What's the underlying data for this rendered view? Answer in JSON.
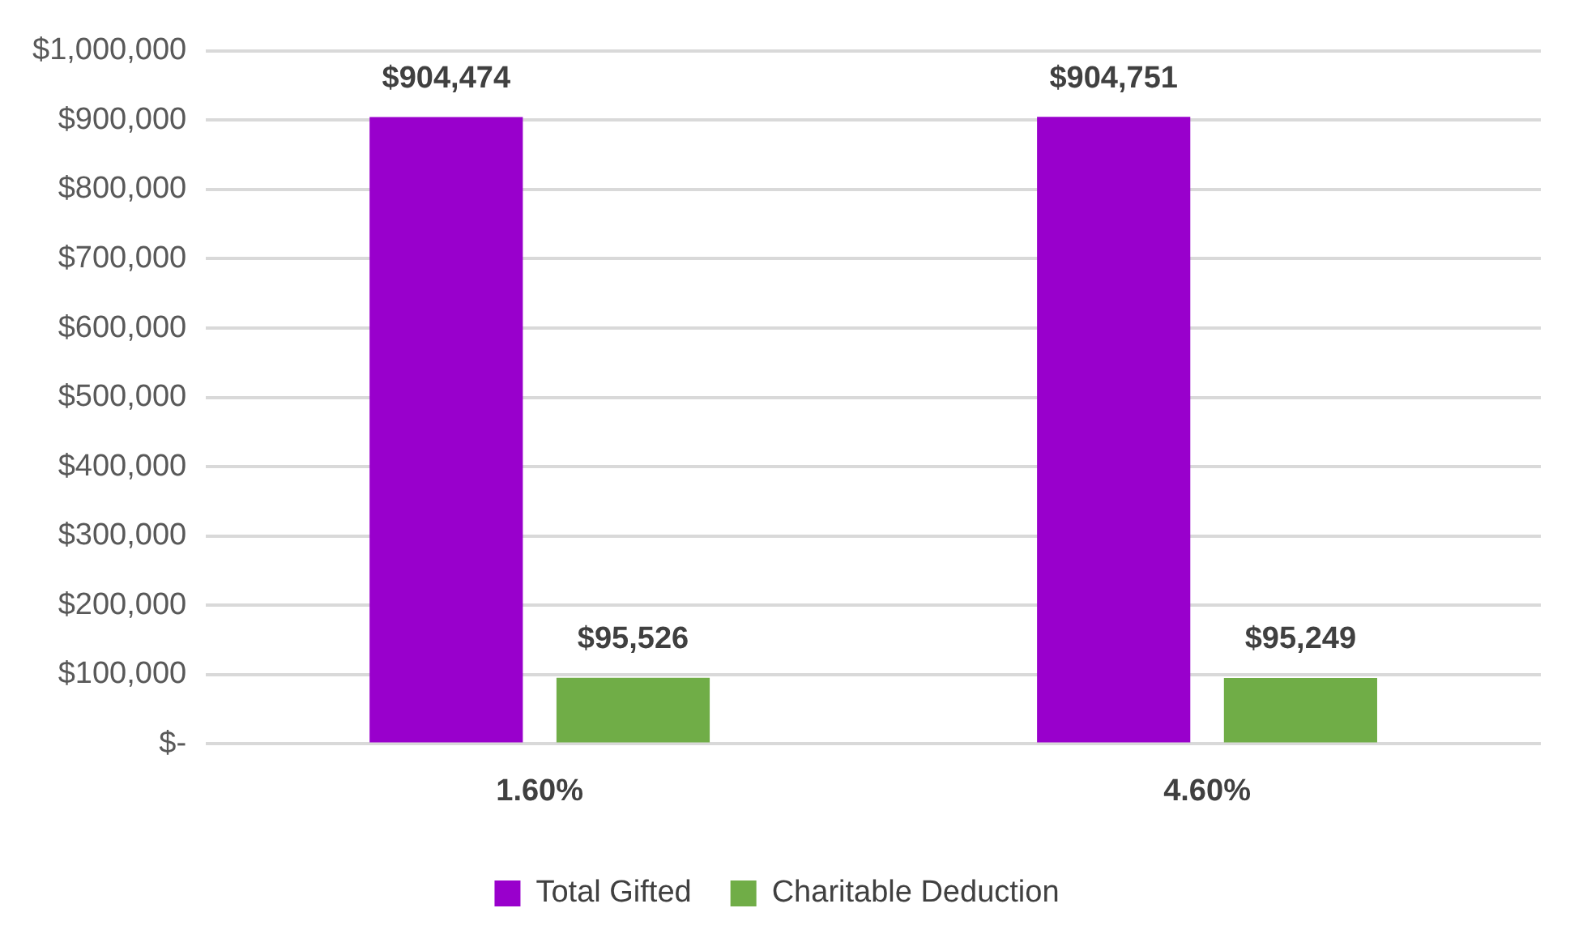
{
  "chart_data": {
    "type": "bar",
    "categories": [
      "1.60%",
      "4.60%"
    ],
    "series": [
      {
        "name": "Total Gifted",
        "color": "#9900cc",
        "values": [
          904474,
          904751
        ],
        "value_labels": [
          "$904,474",
          "$904,751"
        ]
      },
      {
        "name": "Charitable Deduction",
        "color": "#70ad47",
        "values": [
          95526,
          95249
        ],
        "value_labels": [
          "$95,526",
          "$95,249"
        ]
      }
    ],
    "ylim": [
      0,
      1000000
    ],
    "yticks": [
      {
        "value": 0,
        "label": "$-"
      },
      {
        "value": 100000,
        "label": "$100,000"
      },
      {
        "value": 200000,
        "label": "$200,000"
      },
      {
        "value": 300000,
        "label": "$300,000"
      },
      {
        "value": 400000,
        "label": "$400,000"
      },
      {
        "value": 500000,
        "label": "$500,000"
      },
      {
        "value": 600000,
        "label": "$600,000"
      },
      {
        "value": 700000,
        "label": "$700,000"
      },
      {
        "value": 800000,
        "label": "$800,000"
      },
      {
        "value": 900000,
        "label": "$900,000"
      },
      {
        "value": 1000000,
        "label": "$1,000,000"
      }
    ],
    "grid": "y",
    "legend": "bottom"
  }
}
